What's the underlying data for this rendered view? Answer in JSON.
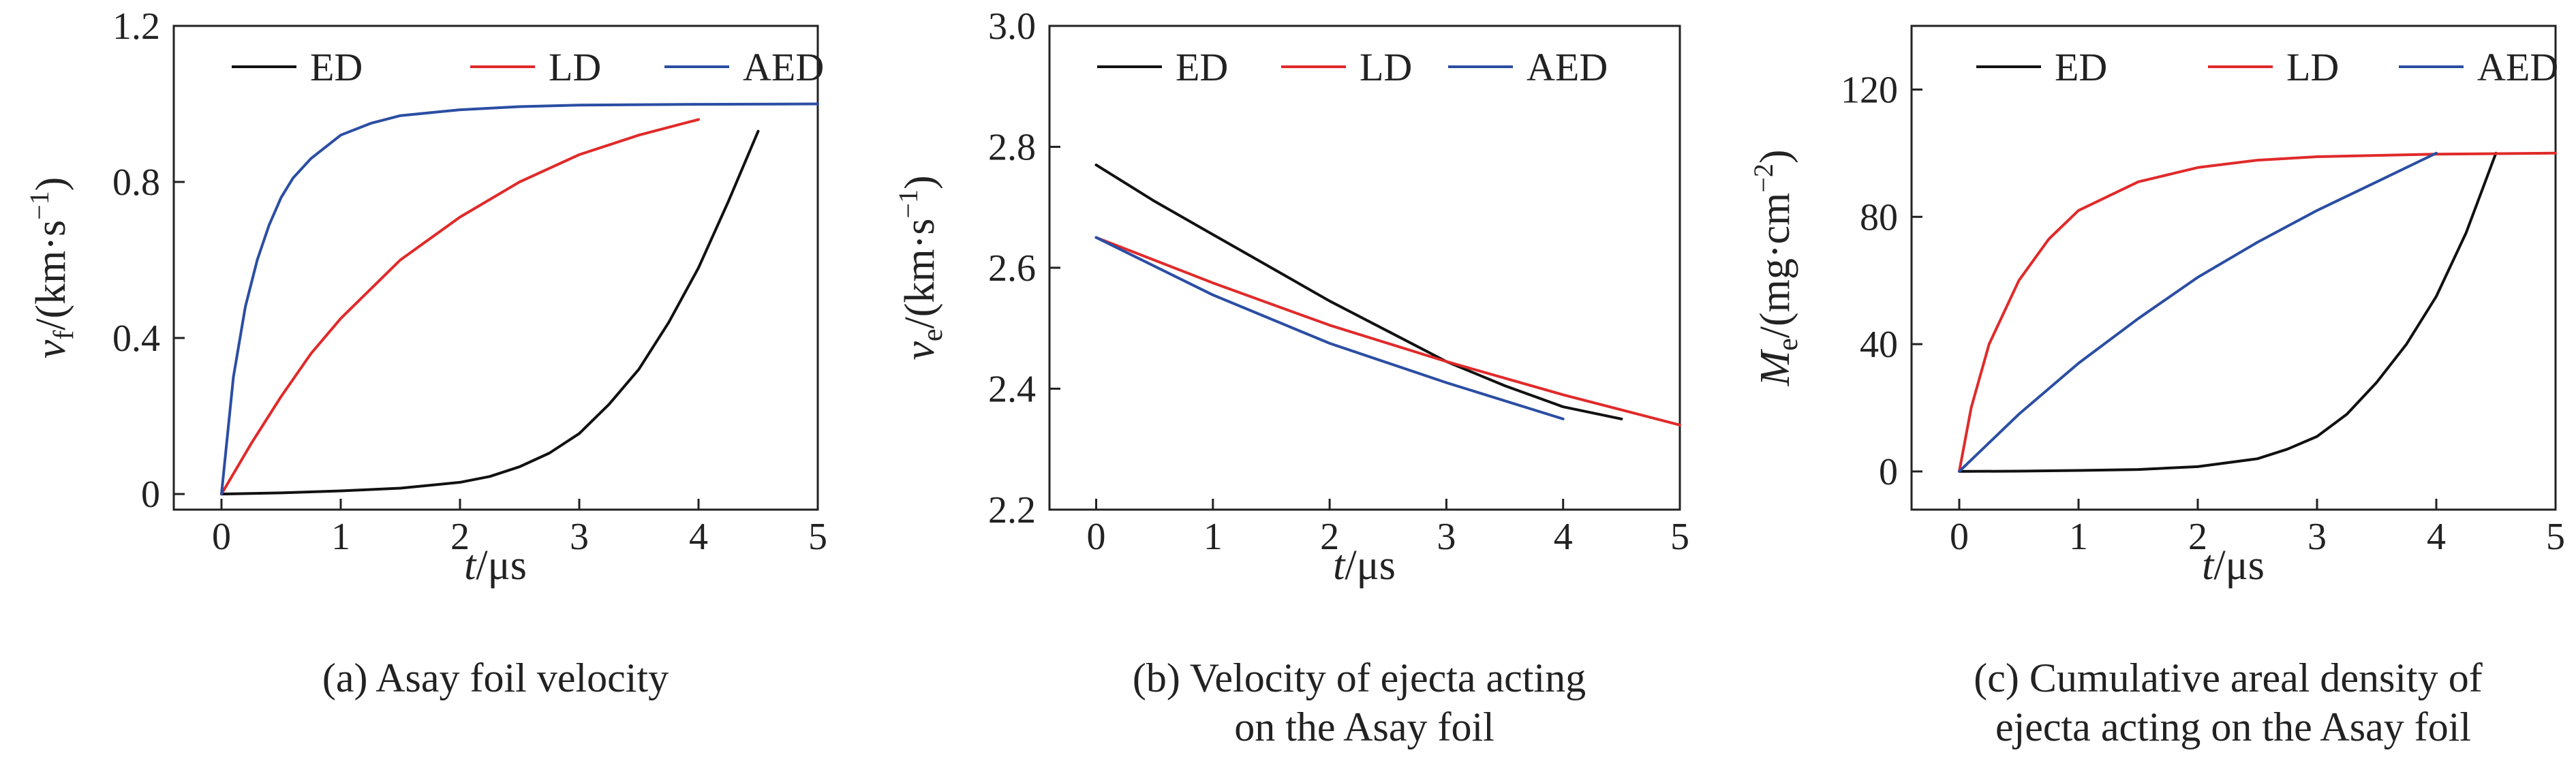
{
  "figure": {
    "panels": [
      {
        "caption_lines": [
          "(a) Asay foil velocity"
        ],
        "xlabel": {
          "italic": "t",
          "rest": "/μs"
        },
        "ylabel": {
          "italic": "v",
          "sub": "f",
          "rest": "/(km·s",
          "sup": "−1",
          "close": ")"
        }
      },
      {
        "caption_lines": [
          "(b) Velocity of ejecta acting",
          "on the Asay foil"
        ],
        "xlabel": {
          "italic": "t",
          "rest": "/μs"
        },
        "ylabel": {
          "italic": "v",
          "sub": "e",
          "rest": "/(km·s",
          "sup": "−1",
          "close": ")"
        }
      },
      {
        "caption_lines": [
          "(c) Cumulative areal density of",
          "ejecta acting on the Asay foil"
        ],
        "xlabel": {
          "italic": "t",
          "rest": "/μs"
        },
        "ylabel": {
          "italic": "M",
          "sub": "e",
          "rest": "/(mg·cm",
          "sup": "−2",
          "close": ")"
        }
      }
    ]
  },
  "colors": {
    "ED": "#111111",
    "LD": "#e02a2a",
    "AED": "#2b4ea3",
    "axis": "#222222"
  },
  "chart_data": [
    {
      "type": "line",
      "xlim": [
        -0.4,
        5
      ],
      "ylim": [
        -0.04,
        1.2
      ],
      "xticks": [
        0,
        1,
        2,
        3,
        4,
        5
      ],
      "yticks": [
        0,
        0.4,
        0.8,
        1.2
      ],
      "ytick_labels": [
        "0",
        "0.4",
        "0.8",
        "1.2"
      ],
      "legend_position": "top",
      "series": [
        {
          "name": "ED",
          "x": [
            0,
            0.5,
            1,
            1.5,
            2,
            2.25,
            2.5,
            2.75,
            3,
            3.25,
            3.5,
            3.75,
            4,
            4.25,
            4.5
          ],
          "y": [
            0,
            0.003,
            0.008,
            0.015,
            0.03,
            0.045,
            0.07,
            0.105,
            0.155,
            0.23,
            0.32,
            0.44,
            0.58,
            0.75,
            0.93
          ]
        },
        {
          "name": "LD",
          "x": [
            0,
            0.25,
            0.5,
            0.75,
            1,
            1.5,
            2,
            2.5,
            3,
            3.5,
            4
          ],
          "y": [
            0,
            0.13,
            0.25,
            0.36,
            0.45,
            0.6,
            0.71,
            0.8,
            0.87,
            0.92,
            0.96
          ]
        },
        {
          "name": "AED",
          "x": [
            0,
            0.1,
            0.2,
            0.3,
            0.4,
            0.5,
            0.6,
            0.75,
            1,
            1.25,
            1.5,
            2,
            2.5,
            3,
            4,
            5
          ],
          "y": [
            0,
            0.3,
            0.48,
            0.6,
            0.69,
            0.76,
            0.81,
            0.86,
            0.92,
            0.95,
            0.97,
            0.985,
            0.993,
            0.997,
            0.999,
            1.0
          ]
        }
      ]
    },
    {
      "type": "line",
      "xlim": [
        -0.4,
        5
      ],
      "ylim": [
        2.2,
        3.0
      ],
      "xticks": [
        0,
        1,
        2,
        3,
        4,
        5
      ],
      "yticks": [
        2.2,
        2.4,
        2.6,
        2.8,
        3.0
      ],
      "ytick_labels": [
        "2.2",
        "2.4",
        "2.6",
        "2.8",
        "3.0"
      ],
      "legend_position": "top",
      "series": [
        {
          "name": "ED",
          "x": [
            0,
            0.5,
            1,
            1.5,
            2,
            2.5,
            3,
            3.5,
            4,
            4.5
          ],
          "y": [
            2.77,
            2.71,
            2.655,
            2.6,
            2.545,
            2.495,
            2.445,
            2.405,
            2.37,
            2.35
          ]
        },
        {
          "name": "LD",
          "x": [
            0,
            1,
            2,
            3,
            4,
            5
          ],
          "y": [
            2.65,
            2.575,
            2.505,
            2.445,
            2.39,
            2.34
          ]
        },
        {
          "name": "AED",
          "x": [
            0,
            1,
            2,
            3,
            4
          ],
          "y": [
            2.65,
            2.555,
            2.475,
            2.41,
            2.35
          ]
        }
      ]
    },
    {
      "type": "line",
      "xlim": [
        -0.4,
        5
      ],
      "ylim": [
        -12,
        140
      ],
      "xticks": [
        0,
        1,
        2,
        3,
        4,
        5
      ],
      "yticks": [
        0,
        40,
        80,
        120
      ],
      "ytick_labels": [
        "0",
        "40",
        "80",
        "120"
      ],
      "legend_position": "top",
      "series": [
        {
          "name": "ED",
          "x": [
            0,
            0.5,
            1,
            1.5,
            2,
            2.5,
            2.75,
            3,
            3.25,
            3.5,
            3.75,
            4,
            4.25,
            4.5
          ],
          "y": [
            0,
            0.1,
            0.3,
            0.6,
            1.5,
            4,
            7,
            11,
            18,
            28,
            40,
            55,
            75,
            100
          ]
        },
        {
          "name": "LD",
          "x": [
            0,
            0.1,
            0.25,
            0.5,
            0.75,
            1,
            1.5,
            2,
            2.5,
            3,
            4,
            5
          ],
          "y": [
            0,
            20,
            40,
            60,
            73,
            82,
            91,
            95.5,
            97.8,
            98.9,
            99.7,
            100
          ]
        },
        {
          "name": "AED",
          "x": [
            0,
            0.5,
            1,
            1.5,
            2,
            2.5,
            3,
            3.5,
            4
          ],
          "y": [
            0,
            18,
            34,
            48,
            61,
            72,
            82,
            91,
            100
          ]
        }
      ]
    }
  ]
}
